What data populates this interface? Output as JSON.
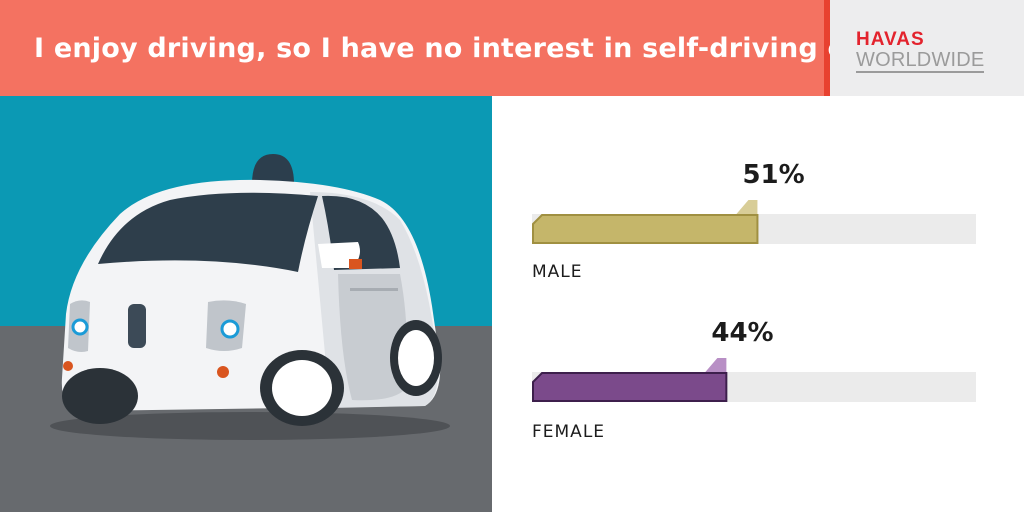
{
  "header": {
    "title": "I enjoy driving, so I have no interest in self-driving cars"
  },
  "logo": {
    "line1": "HAVAS",
    "line2": "WORLDWIDE"
  },
  "chart_data": {
    "type": "bar",
    "orientation": "horizontal",
    "title": "I enjoy driving, so I have no interest in self-driving cars",
    "categories": [
      "MALE",
      "FEMALE"
    ],
    "values": [
      51,
      44
    ],
    "value_labels": [
      "51%",
      "44%"
    ],
    "xlim": [
      0,
      100
    ],
    "colors": [
      "#c5b66a",
      "#7b4a8b"
    ],
    "outline_colors": [
      "#a09041",
      "#3d1f4c"
    ],
    "track_color": "#ebebeb"
  }
}
